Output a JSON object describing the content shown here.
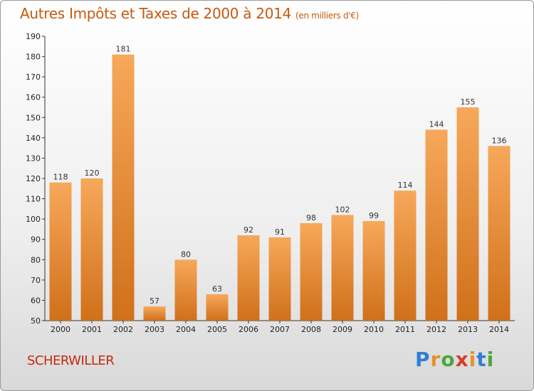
{
  "header": {
    "title": "Autres Impôts et Taxes de 2000 à 2014",
    "unit": "(en milliers d'€)"
  },
  "footer": {
    "commune": "SCHERWILLER",
    "logo_letters": [
      "P",
      "r",
      "o",
      "x",
      "i",
      "t",
      "i"
    ],
    "logo_colors": [
      "#2e7fd1",
      "#e8912a",
      "#4aa63c",
      "#d63c2e",
      "#e8912a",
      "#2e7fd1",
      "#4aa63c"
    ]
  },
  "colors": {
    "bar_light": "#f7a85a",
    "bar_dark": "#d0701a",
    "title": "#c55a10",
    "commune": "#c52b10"
  },
  "chart_data": {
    "type": "bar",
    "title": "Autres Impôts et Taxes de 2000 à 2014",
    "subtitle": "(en milliers d'€)",
    "xlabel": "",
    "ylabel": "",
    "categories": [
      "2000",
      "2001",
      "2002",
      "2003",
      "2004",
      "2005",
      "2006",
      "2007",
      "2008",
      "2009",
      "2010",
      "2011",
      "2012",
      "2013",
      "2014"
    ],
    "values": [
      118,
      120,
      181,
      57,
      80,
      63,
      92,
      91,
      98,
      102,
      99,
      114,
      144,
      155,
      136
    ],
    "ylim": [
      50,
      190
    ],
    "yticks": [
      50,
      60,
      70,
      80,
      90,
      100,
      110,
      120,
      130,
      140,
      150,
      160,
      170,
      180,
      190
    ],
    "grid": false,
    "data_labels": true
  }
}
